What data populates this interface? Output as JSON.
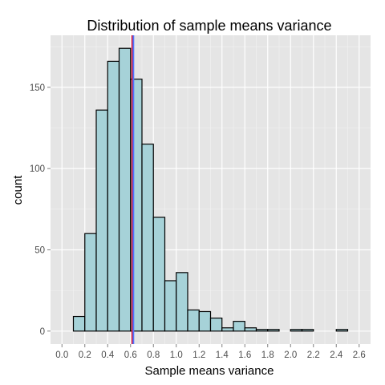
{
  "chart_data": {
    "type": "histogram",
    "title": "Distribution of sample means variance",
    "xlabel": "Sample means variance",
    "ylabel": "count",
    "xlim": [
      -0.1,
      2.7
    ],
    "ylim": [
      -8,
      182
    ],
    "x_ticks": [
      "0.0",
      "0.2",
      "0.4",
      "0.6",
      "0.8",
      "1.0",
      "1.2",
      "1.4",
      "1.6",
      "1.8",
      "2.0",
      "2.2",
      "2.4",
      "2.6"
    ],
    "x_tick_values": [
      0.0,
      0.2,
      0.4,
      0.6,
      0.8,
      1.0,
      1.2,
      1.4,
      1.6,
      1.8,
      2.0,
      2.2,
      2.4,
      2.6
    ],
    "y_ticks": [
      "0",
      "50",
      "100",
      "150"
    ],
    "y_tick_values": [
      0,
      50,
      100,
      150
    ],
    "bin_width": 0.1,
    "bins": [
      {
        "start": 0.0,
        "count": 0
      },
      {
        "start": 0.1,
        "count": 9
      },
      {
        "start": 0.2,
        "count": 60
      },
      {
        "start": 0.3,
        "count": 136
      },
      {
        "start": 0.4,
        "count": 166
      },
      {
        "start": 0.5,
        "count": 174
      },
      {
        "start": 0.6,
        "count": 155
      },
      {
        "start": 0.7,
        "count": 115
      },
      {
        "start": 0.8,
        "count": 70
      },
      {
        "start": 0.9,
        "count": 31
      },
      {
        "start": 1.0,
        "count": 36
      },
      {
        "start": 1.1,
        "count": 13
      },
      {
        "start": 1.2,
        "count": 12
      },
      {
        "start": 1.3,
        "count": 8
      },
      {
        "start": 1.4,
        "count": 2
      },
      {
        "start": 1.5,
        "count": 6
      },
      {
        "start": 1.6,
        "count": 2
      },
      {
        "start": 1.7,
        "count": 1
      },
      {
        "start": 1.8,
        "count": 1
      },
      {
        "start": 1.9,
        "count": 0
      },
      {
        "start": 2.0,
        "count": 1
      },
      {
        "start": 2.1,
        "count": 1
      },
      {
        "start": 2.2,
        "count": 0
      },
      {
        "start": 2.3,
        "count": 0
      },
      {
        "start": 2.4,
        "count": 1
      },
      {
        "start": 2.5,
        "count": 0
      }
    ],
    "vertical_lines": [
      {
        "name": "red",
        "x": 0.615,
        "color": "#e8112d"
      },
      {
        "name": "blue",
        "x": 0.625,
        "color": "#4f74ff"
      }
    ],
    "colors": {
      "panel_background": "#e5e5e5",
      "grid_major": "#ffffff",
      "grid_minor": "#f2f2f2",
      "bar_fill": "#a6d2d8",
      "bar_stroke": "#000000"
    },
    "grid": true
  }
}
